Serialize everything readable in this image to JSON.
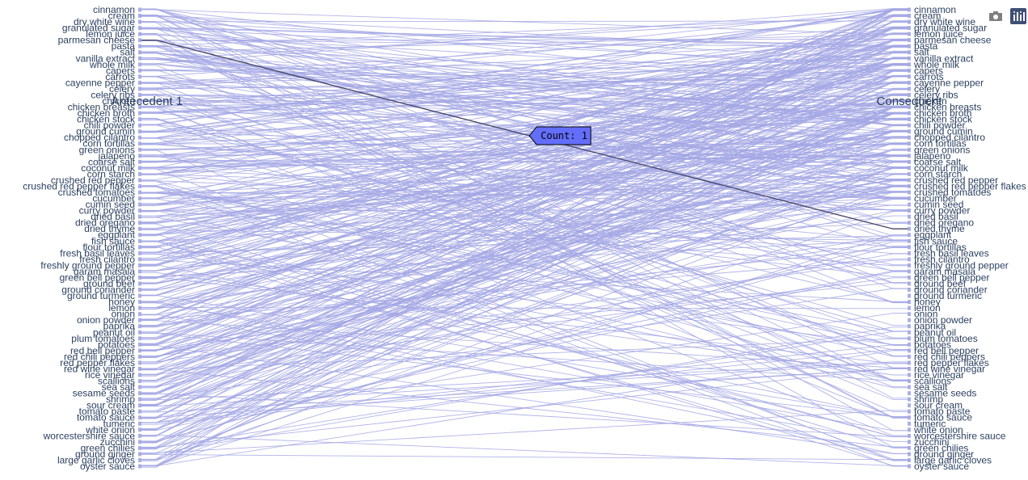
{
  "colors": {
    "ribbon": "#a3a7e4",
    "highlight": "#444466",
    "tick": "#c8c8d8",
    "tooltip_bg": "#636efa",
    "text": "#2a3f5f",
    "modebar": "#7f7f7f",
    "plotly_logo": "#3f4f75"
  },
  "icons": {
    "camera": "camera-icon",
    "plotly": "plotly-logo-icon"
  },
  "tooltip": {
    "text": "Count: 1"
  },
  "chart_data": {
    "type": "parallel-categories",
    "line_color": "#a3a7e4",
    "dimensions": [
      {
        "name": "Antecedent 1",
        "categories": [
          "cinnamon",
          "cream",
          "dry white wine",
          "granulated sugar",
          "lemon juice",
          "parmesan cheese",
          "pasta",
          "salt",
          "vanilla extract",
          "whole milk",
          "capers",
          "carrots",
          "cayenne pepper",
          "celery",
          "celery ribs",
          "chicken",
          "chicken breasts",
          "chicken broth",
          "chicken stock",
          "chili powder",
          "ground cumin",
          "chopped cilantro",
          "corn tortillas",
          "green onions",
          "jalapeno",
          "coarse salt",
          "coconut milk",
          "corn starch",
          "crushed red pepper",
          "crushed red pepper flakes",
          "crushed tomatoes",
          "cucumber",
          "cumin seed",
          "curry powder",
          "dried basil",
          "dried oregano",
          "dried thyme",
          "eggplant",
          "fish sauce",
          "flour tortillas",
          "fresh basil leaves",
          "fresh cilantro",
          "freshly ground pepper",
          "garam masala",
          "green bell pepper",
          "ground beef",
          "ground coriander",
          "ground turmeric",
          "honey",
          "lemon",
          "onion",
          "onion powder",
          "paprika",
          "peanut oil",
          "plum tomatoes",
          "potatoes",
          "red bell pepper",
          "red chili peppers",
          "red pepper flakes",
          "red wine vinegar",
          "rice vinegar",
          "scallions",
          "sea salt",
          "sesame seeds",
          "shrimp",
          "sour cream",
          "tomato paste",
          "tomato sauce",
          "tumeric",
          "white onion",
          "worcestershire sauce",
          "zucchini",
          "green chilies",
          "ground ginger",
          "large garlic cloves",
          "oyster sauce"
        ]
      },
      {
        "name": "Consequent",
        "categories": [
          "cinnamon",
          "cream",
          "dry white wine",
          "granulated sugar",
          "lemon juice",
          "parmesan cheese",
          "pasta",
          "salt",
          "vanilla extract",
          "whole milk",
          "capers",
          "carrots",
          "cayenne pepper",
          "celery",
          "celery ribs",
          "chicken",
          "chicken breasts",
          "chicken broth",
          "chicken stock",
          "chili powder",
          "ground cumin",
          "chopped cilantro",
          "corn tortillas",
          "green onions",
          "jalapeno",
          "coarse salt",
          "coconut milk",
          "corn starch",
          "crushed red pepper",
          "crushed red pepper flakes",
          "crushed tomatoes",
          "cucumber",
          "cumin seed",
          "curry powder",
          "dried basil",
          "dried oregano",
          "dried thyme",
          "eggplant",
          "fish sauce",
          "flour tortillas",
          "fresh basil leaves",
          "fresh cilantro",
          "freshly ground pepper",
          "garam masala",
          "green bell pepper",
          "ground beef",
          "ground coriander",
          "ground turmeric",
          "honey",
          "lemon",
          "onion",
          "onion powder",
          "paprika",
          "peanut oil",
          "plum tomatoes",
          "potatoes",
          "red bell pepper",
          "red chili peppers",
          "red pepper flakes",
          "red wine vinegar",
          "rice vinegar",
          "scallions",
          "sea salt",
          "sesame seeds",
          "shrimp",
          "sour cream",
          "tomato paste",
          "tomato sauce",
          "tumeric",
          "white onion",
          "worcestershire sauce",
          "zucchini",
          "green chilies",
          "ground ginger",
          "large garlic cloves",
          "oyster sauce"
        ]
      }
    ],
    "highlighted_link": {
      "from": "parmesan cheese",
      "to": "dried thyme",
      "count": 1
    },
    "count_per_link": 1
  }
}
